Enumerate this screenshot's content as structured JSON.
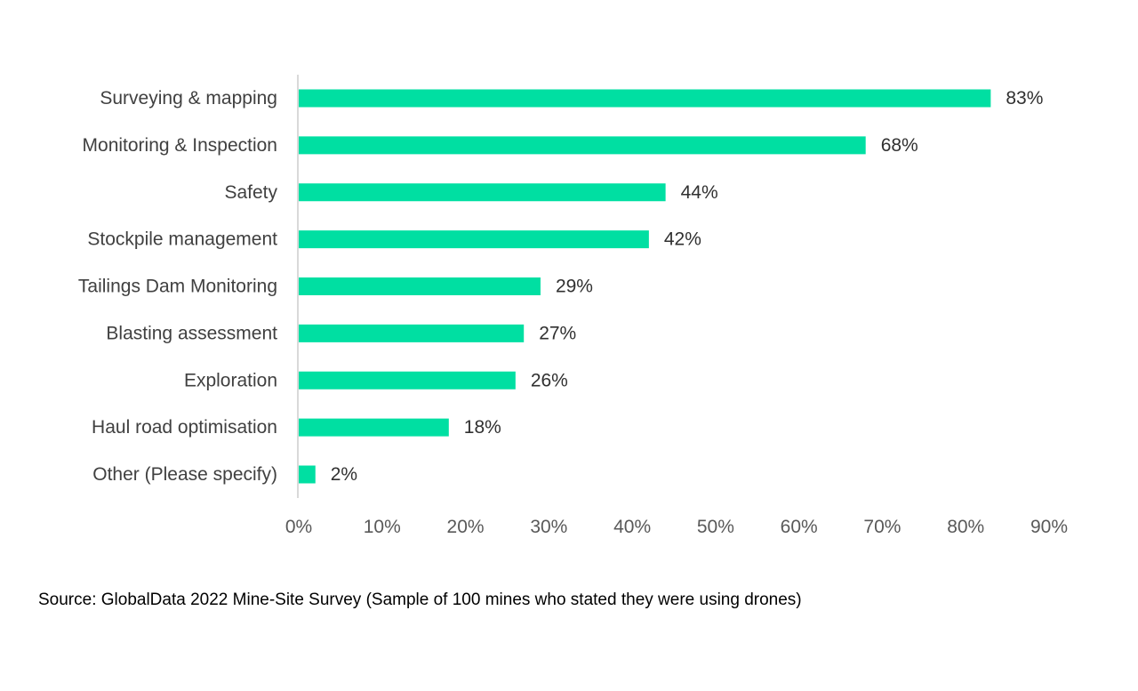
{
  "chart_data": {
    "type": "bar",
    "orientation": "horizontal",
    "categories": [
      "Surveying & mapping",
      "Monitoring & Inspection",
      "Safety",
      "Stockpile management",
      "Tailings Dam Monitoring",
      "Blasting assessment",
      "Exploration",
      "Haul road optimisation",
      "Other (Please specify)"
    ],
    "values": [
      83,
      68,
      44,
      42,
      29,
      27,
      26,
      18,
      2
    ],
    "value_labels": [
      "83%",
      "68%",
      "44%",
      "42%",
      "29%",
      "27%",
      "26%",
      "18%",
      "2%"
    ],
    "xlim": [
      0,
      90
    ],
    "x_ticks": [
      0,
      10,
      20,
      30,
      40,
      50,
      60,
      70,
      80,
      90
    ],
    "x_tick_labels": [
      "0%",
      "10%",
      "20%",
      "30%",
      "40%",
      "50%",
      "60%",
      "70%",
      "80%",
      "90%"
    ],
    "title": "",
    "xlabel": "",
    "ylabel": "",
    "grid": false,
    "legend": "none",
    "bar_color": "#00DFA2",
    "axis_color": "#D9D9D9"
  },
  "source_note": "Source: GlobalData 2022 Mine-Site Survey (Sample of 100 mines who stated they were using drones)"
}
